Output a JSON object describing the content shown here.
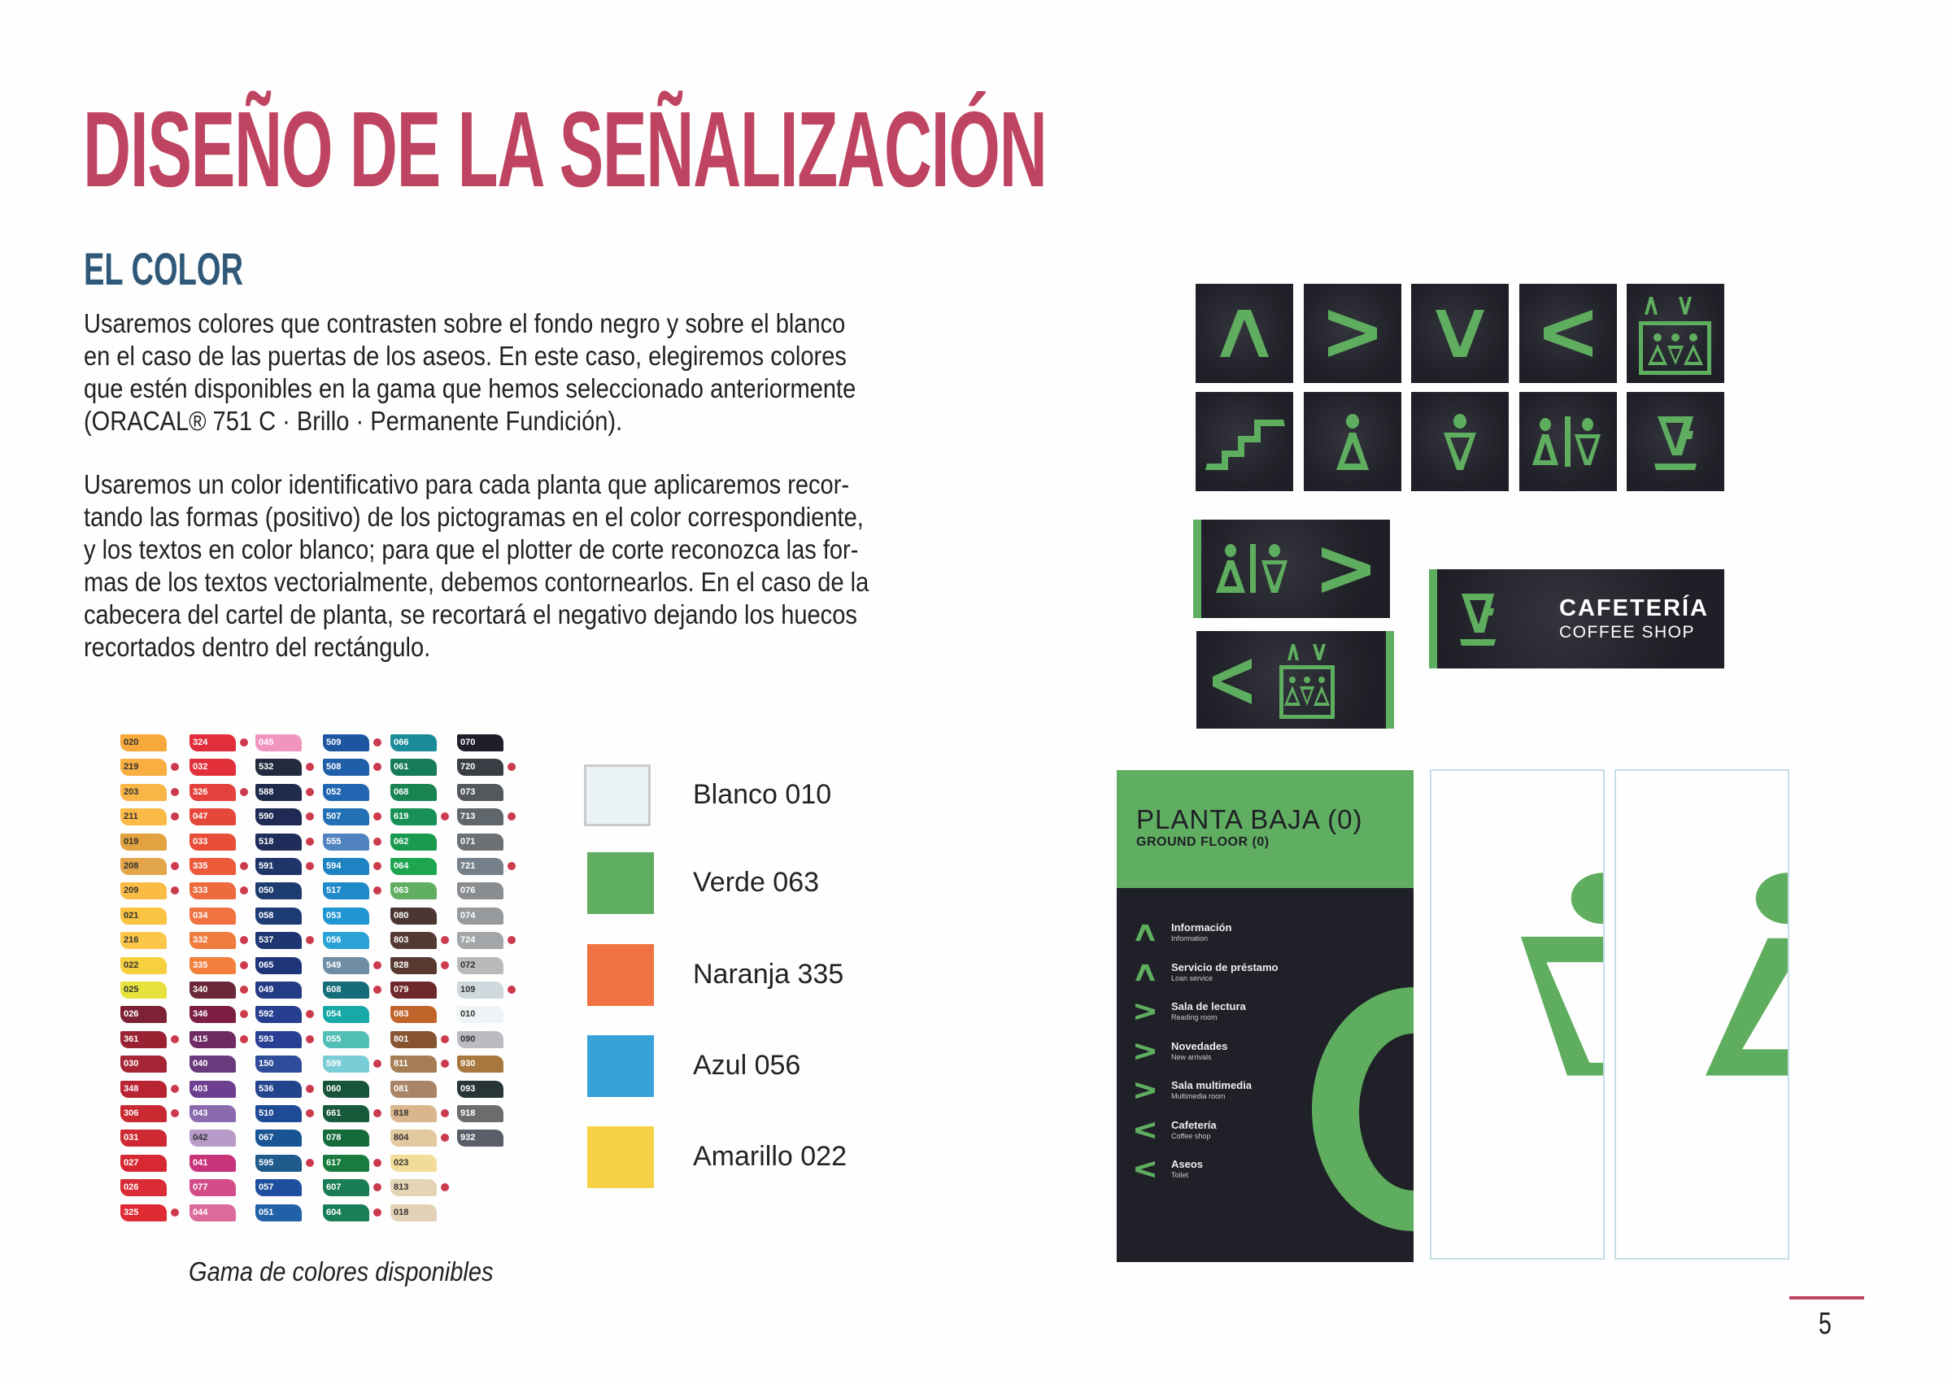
{
  "page": {
    "title": "DISEÑO DE LA SEÑALIZACIÓN",
    "section_title": "EL COLOR",
    "paragraph1": [
      "Usaremos colores que contrasten sobre el fondo negro y sobre el blanco",
      "en el caso de las puertas de los aseos. En este caso, elegiremos colores",
      "que estén disponibles en la gama que hemos seleccionado anteriormente",
      "(ORACAL® 751 C · Brillo · Permanente Fundición)."
    ],
    "paragraph2": [
      "Usaremos un color identificativo para cada planta que aplicaremos recor-",
      "tando las formas (positivo) de los pictogramas en el color correspondiente,",
      "y los textos en color blanco; para que el plotter de corte reconozca las for-",
      "mas de los textos vectorialmente, debemos contornearlos. En el caso de la",
      "cabecera del cartel de planta, se recortará el negativo dejando los huecos",
      "recortados dentro del rectángulo."
    ],
    "page_number": "5",
    "accent_color": "#bf4461",
    "section_color": "#2f5878"
  },
  "palette": {
    "caption": "Gama de colores disponibles",
    "columns": [
      [
        {
          "code": "020",
          "color": "#f6a93a",
          "dot": false,
          "dark": true
        },
        {
          "code": "219",
          "color": "#f8ae40",
          "dot": true,
          "dark": true
        },
        {
          "code": "203",
          "color": "#f9b546",
          "dot": true,
          "dark": true
        },
        {
          "code": "211",
          "color": "#fbba48",
          "dot": true,
          "dark": true
        },
        {
          "code": "019",
          "color": "#e1a23f",
          "dot": false,
          "dark": true
        },
        {
          "code": "208",
          "color": "#e4a64a",
          "dot": true,
          "dark": true
        },
        {
          "code": "209",
          "color": "#fbbc45",
          "dot": true,
          "dark": true
        },
        {
          "code": "021",
          "color": "#fbc342",
          "dot": false,
          "dark": true
        },
        {
          "code": "216",
          "color": "#fcc649",
          "dot": false,
          "dark": true
        },
        {
          "code": "022",
          "color": "#f6d03f",
          "dot": false,
          "dark": true
        },
        {
          "code": "025",
          "color": "#e7e23e",
          "dot": false,
          "dark": true
        },
        {
          "code": "026",
          "color": "#7d2135",
          "dot": false,
          "dark": false
        },
        {
          "code": "361",
          "color": "#9a2232",
          "dot": true,
          "dark": false
        },
        {
          "code": "030",
          "color": "#a72534",
          "dot": false,
          "dark": false
        },
        {
          "code": "348",
          "color": "#b82432",
          "dot": true,
          "dark": false
        },
        {
          "code": "306",
          "color": "#c92a32",
          "dot": true,
          "dark": false
        },
        {
          "code": "031",
          "color": "#cf2a33",
          "dot": false,
          "dark": false
        },
        {
          "code": "027",
          "color": "#d72934",
          "dot": false,
          "dark": false
        },
        {
          "code": "026",
          "color": "#d92c36",
          "dot": false,
          "dark": false
        },
        {
          "code": "325",
          "color": "#e02b35",
          "dot": true,
          "dark": false
        }
      ],
      [
        {
          "code": "324",
          "color": "#e22d3a",
          "dot": true,
          "dark": false
        },
        {
          "code": "032",
          "color": "#e2303a",
          "dot": false,
          "dark": false
        },
        {
          "code": "326",
          "color": "#e4413c",
          "dot": true,
          "dark": false
        },
        {
          "code": "047",
          "color": "#e5473a",
          "dot": false,
          "dark": false
        },
        {
          "code": "033",
          "color": "#e84e38",
          "dot": false,
          "dark": false
        },
        {
          "code": "335",
          "color": "#ec5a3a",
          "dot": true,
          "dark": false
        },
        {
          "code": "333",
          "color": "#ed6b3e",
          "dot": true,
          "dark": false
        },
        {
          "code": "034",
          "color": "#ef723f",
          "dot": false,
          "dark": false
        },
        {
          "code": "332",
          "color": "#f07b3e",
          "dot": true,
          "dark": false
        },
        {
          "code": "335",
          "color": "#f2803c",
          "dot": true,
          "dark": false
        },
        {
          "code": "340",
          "color": "#6a2838",
          "dot": true,
          "dark": false
        },
        {
          "code": "346",
          "color": "#7c1e43",
          "dot": true,
          "dark": false
        },
        {
          "code": "415",
          "color": "#6e2b63",
          "dot": true,
          "dark": false
        },
        {
          "code": "040",
          "color": "#6a3b7c",
          "dot": false,
          "dark": false
        },
        {
          "code": "403",
          "color": "#6d3f91",
          "dot": false,
          "dark": false
        },
        {
          "code": "043",
          "color": "#8a6bae",
          "dot": false,
          "dark": false
        },
        {
          "code": "042",
          "color": "#b79bc8",
          "dot": false,
          "dark": true
        },
        {
          "code": "041",
          "color": "#c9337a",
          "dot": false,
          "dark": false
        },
        {
          "code": "077",
          "color": "#d24d8a",
          "dot": false,
          "dark": false
        },
        {
          "code": "044",
          "color": "#dc6a9a",
          "dot": false,
          "dark": false
        }
      ],
      [
        {
          "code": "045",
          "color": "#f195c0",
          "dot": false,
          "dark": false
        },
        {
          "code": "532",
          "color": "#222a3d",
          "dot": true,
          "dark": false
        },
        {
          "code": "588",
          "color": "#1f2a4c",
          "dot": true,
          "dark": false
        },
        {
          "code": "590",
          "color": "#1f2b54",
          "dot": true,
          "dark": false
        },
        {
          "code": "518",
          "color": "#202c5a",
          "dot": true,
          "dark": false
        },
        {
          "code": "591",
          "color": "#1f3468",
          "dot": true,
          "dark": false
        },
        {
          "code": "050",
          "color": "#1d3d70",
          "dot": false,
          "dark": false
        },
        {
          "code": "058",
          "color": "#1d3b75",
          "dot": false,
          "dark": false
        },
        {
          "code": "537",
          "color": "#1d3570",
          "dot": true,
          "dark": false
        },
        {
          "code": "065",
          "color": "#1e3579",
          "dot": false,
          "dark": false
        },
        {
          "code": "049",
          "color": "#243b86",
          "dot": false,
          "dark": false
        },
        {
          "code": "592",
          "color": "#263e8e",
          "dot": true,
          "dark": false
        },
        {
          "code": "593",
          "color": "#283f93",
          "dot": true,
          "dark": false
        },
        {
          "code": "150",
          "color": "#2e4c9a",
          "dot": false,
          "dark": false
        },
        {
          "code": "536",
          "color": "#22448c",
          "dot": true,
          "dark": false
        },
        {
          "code": "510",
          "color": "#1e4a96",
          "dot": true,
          "dark": false
        },
        {
          "code": "067",
          "color": "#195594",
          "dot": false,
          "dark": false
        },
        {
          "code": "595",
          "color": "#1f5a8c",
          "dot": true,
          "dark": false
        },
        {
          "code": "057",
          "color": "#1e4f9f",
          "dot": false,
          "dark": false
        },
        {
          "code": "051",
          "color": "#2261a8",
          "dot": false,
          "dark": false
        }
      ],
      [
        {
          "code": "509",
          "color": "#1d55a0",
          "dot": true,
          "dark": false
        },
        {
          "code": "508",
          "color": "#1f5fa9",
          "dot": true,
          "dark": false
        },
        {
          "code": "052",
          "color": "#2266b1",
          "dot": false,
          "dark": false
        },
        {
          "code": "507",
          "color": "#2270b5",
          "dot": true,
          "dark": false
        },
        {
          "code": "555",
          "color": "#5283c1",
          "dot": true,
          "dark": false
        },
        {
          "code": "594",
          "color": "#1e83c2",
          "dot": true,
          "dark": false
        },
        {
          "code": "517",
          "color": "#1f8ac9",
          "dot": true,
          "dark": false
        },
        {
          "code": "053",
          "color": "#2096d2",
          "dot": false,
          "dark": false
        },
        {
          "code": "056",
          "color": "#2aa2d6",
          "dot": false,
          "dark": false
        },
        {
          "code": "549",
          "color": "#6f8ea6",
          "dot": true,
          "dark": false
        },
        {
          "code": "608",
          "color": "#166d7a",
          "dot": true,
          "dark": false
        },
        {
          "code": "054",
          "color": "#17a8a8",
          "dot": false,
          "dark": false
        },
        {
          "code": "055",
          "color": "#52bfb6",
          "dot": false,
          "dark": false
        },
        {
          "code": "599",
          "color": "#7accd6",
          "dot": true,
          "dark": false
        },
        {
          "code": "060",
          "color": "#175439",
          "dot": false,
          "dark": false
        },
        {
          "code": "661",
          "color": "#175a3c",
          "dot": true,
          "dark": false
        },
        {
          "code": "078",
          "color": "#166b3b",
          "dot": false,
          "dark": false
        },
        {
          "code": "617",
          "color": "#197c3f",
          "dot": true,
          "dark": false
        },
        {
          "code": "607",
          "color": "#1a7d55",
          "dot": true,
          "dark": false
        },
        {
          "code": "604",
          "color": "#197f59",
          "dot": true,
          "dark": false
        }
      ],
      [
        {
          "code": "066",
          "color": "#1a8c99",
          "dot": false,
          "dark": false
        },
        {
          "code": "061",
          "color": "#167b59",
          "dot": false,
          "dark": false
        },
        {
          "code": "068",
          "color": "#198452",
          "dot": false,
          "dark": false
        },
        {
          "code": "619",
          "color": "#199156",
          "dot": true,
          "dark": false
        },
        {
          "code": "062",
          "color": "#1a9a4f",
          "dot": false,
          "dark": false
        },
        {
          "code": "064",
          "color": "#1ea54f",
          "dot": false,
          "dark": false
        },
        {
          "code": "063",
          "color": "#5fae62",
          "dot": false,
          "dark": false
        },
        {
          "code": "080",
          "color": "#4b3632",
          "dot": false,
          "dark": false
        },
        {
          "code": "803",
          "color": "#543832",
          "dot": true,
          "dark": false
        },
        {
          "code": "828",
          "color": "#5a3a30",
          "dot": true,
          "dark": false
        },
        {
          "code": "079",
          "color": "#6e2a2a",
          "dot": false,
          "dark": false
        },
        {
          "code": "083",
          "color": "#c0642c",
          "dot": false,
          "dark": false
        },
        {
          "code": "801",
          "color": "#875432",
          "dot": true,
          "dark": false
        },
        {
          "code": "811",
          "color": "#a67e55",
          "dot": true,
          "dark": false
        },
        {
          "code": "081",
          "color": "#a98466",
          "dot": false,
          "dark": false
        },
        {
          "code": "818",
          "color": "#d9b68c",
          "dot": true,
          "dark": true
        },
        {
          "code": "804",
          "color": "#e3c99f",
          "dot": true,
          "dark": true
        },
        {
          "code": "023",
          "color": "#f2dd98",
          "dot": false,
          "dark": true
        },
        {
          "code": "813",
          "color": "#e5d5b7",
          "dot": true,
          "dark": true
        },
        {
          "code": "018",
          "color": "#e4d2b8",
          "dot": false,
          "dark": true
        }
      ],
      [
        {
          "code": "070",
          "color": "#1e1f2b",
          "dot": false,
          "dark": false
        },
        {
          "code": "720",
          "color": "#3a3e44",
          "dot": true,
          "dark": false
        },
        {
          "code": "073",
          "color": "#54575c",
          "dot": false,
          "dark": false
        },
        {
          "code": "713",
          "color": "#5f666c",
          "dot": true,
          "dark": false
        },
        {
          "code": "071",
          "color": "#6d7174",
          "dot": false,
          "dark": false
        },
        {
          "code": "721",
          "color": "#75808a",
          "dot": true,
          "dark": false
        },
        {
          "code": "076",
          "color": "#8a8d90",
          "dot": false,
          "dark": false
        },
        {
          "code": "074",
          "color": "#969a9d",
          "dot": false,
          "dark": false
        },
        {
          "code": "724",
          "color": "#a3a6a8",
          "dot": true,
          "dark": false
        },
        {
          "code": "072",
          "color": "#b8babc",
          "dot": false,
          "dark": true
        },
        {
          "code": "109",
          "color": "#cfd8dc",
          "dot": true,
          "dark": true
        },
        {
          "code": "010",
          "color": "#eef4f5",
          "dot": false,
          "dark": true
        },
        {
          "code": "090",
          "color": "#babcc0",
          "dot": false,
          "dark": true
        },
        {
          "code": "930",
          "color": "#a7773e",
          "dot": false,
          "dark": false
        },
        {
          "code": "093",
          "color": "#283536",
          "dot": false,
          "dark": false
        },
        {
          "code": "918",
          "color": "#6c6d6b",
          "dot": false,
          "dark": false
        },
        {
          "code": "932",
          "color": "#5a5e68",
          "dot": false,
          "dark": false
        }
      ]
    ]
  },
  "selected_colors": [
    {
      "label": "Blanco 010",
      "color": "#eaf2f3",
      "bordered": true
    },
    {
      "label": "Verde 063",
      "color": "#5fae62",
      "bordered": false
    },
    {
      "label": "Naranja 335",
      "color": "#ef7342",
      "bordered": false
    },
    {
      "label": "Azul 056",
      "color": "#38a2d8",
      "bordered": false
    },
    {
      "label": "Amarillo 022",
      "color": "#f6d046",
      "bordered": false
    }
  ],
  "signs": {
    "cafeteria_title": "CAFETERÍA",
    "cafeteria_subtitle": "COFFEE SHOP",
    "floor_title": "PLANTA BAJA (0)",
    "floor_subtitle": "GROUND FLOOR (0)",
    "floor_items": [
      {
        "arrow": "up",
        "label": "Información",
        "sub": "Information"
      },
      {
        "arrow": "up",
        "label": "Servicio de préstamo",
        "sub": "Loan service"
      },
      {
        "arrow": "right",
        "label": "Sala de lectura",
        "sub": "Reading room"
      },
      {
        "arrow": "right",
        "label": "Novedades",
        "sub": "New arrivals"
      },
      {
        "arrow": "right",
        "label": "Sala multimedia",
        "sub": "Multimedia room"
      },
      {
        "arrow": "left",
        "label": "Cafetería",
        "sub": "Coffee shop"
      },
      {
        "arrow": "left",
        "label": "Aseos",
        "sub": "Toilet"
      }
    ],
    "pictogram_color": "#5fae62",
    "sign_background": "#202028"
  }
}
